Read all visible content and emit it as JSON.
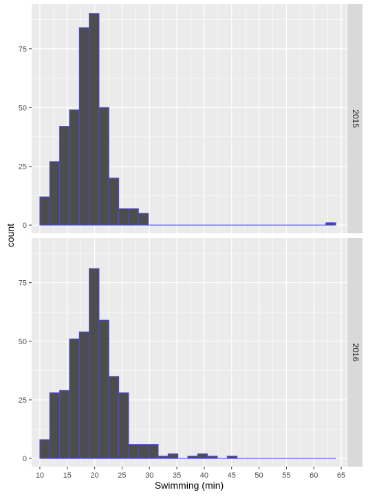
{
  "chart_data": {
    "type": "bar",
    "xlabel": "Swimming (min)",
    "ylabel": "count",
    "x_ticks": [
      10,
      15,
      20,
      25,
      30,
      35,
      40,
      45,
      50,
      55,
      60,
      65
    ],
    "y_ticks": [
      0,
      25,
      50,
      75
    ],
    "xlim": [
      8.5,
      66
    ],
    "ylim": [
      -3.5,
      94
    ],
    "grid": true,
    "bin_width": 1.8,
    "bin_start": 10,
    "colors": {
      "bar_fill": "#4d4d4d",
      "bar_stroke": "#4a4ae6",
      "panel_bg": "#ebebeb",
      "grid_major": "#ffffff",
      "strip_bg": "#d9d9d9"
    },
    "facets": [
      {
        "label": "2015",
        "counts": [
          12,
          27,
          42,
          49,
          84,
          90,
          50,
          20,
          7,
          7,
          5,
          0,
          0,
          0,
          0,
          0,
          0,
          0,
          0,
          0,
          0,
          0,
          0,
          0,
          0,
          0,
          0,
          0,
          0,
          1
        ]
      },
      {
        "label": "2016",
        "counts": [
          8,
          28,
          29,
          51,
          54,
          81,
          59,
          35,
          28,
          6,
          6,
          6,
          1,
          2,
          0,
          1,
          2,
          1,
          0,
          1,
          0,
          0,
          0,
          0,
          0,
          0,
          0,
          0,
          0,
          0
        ]
      }
    ]
  }
}
